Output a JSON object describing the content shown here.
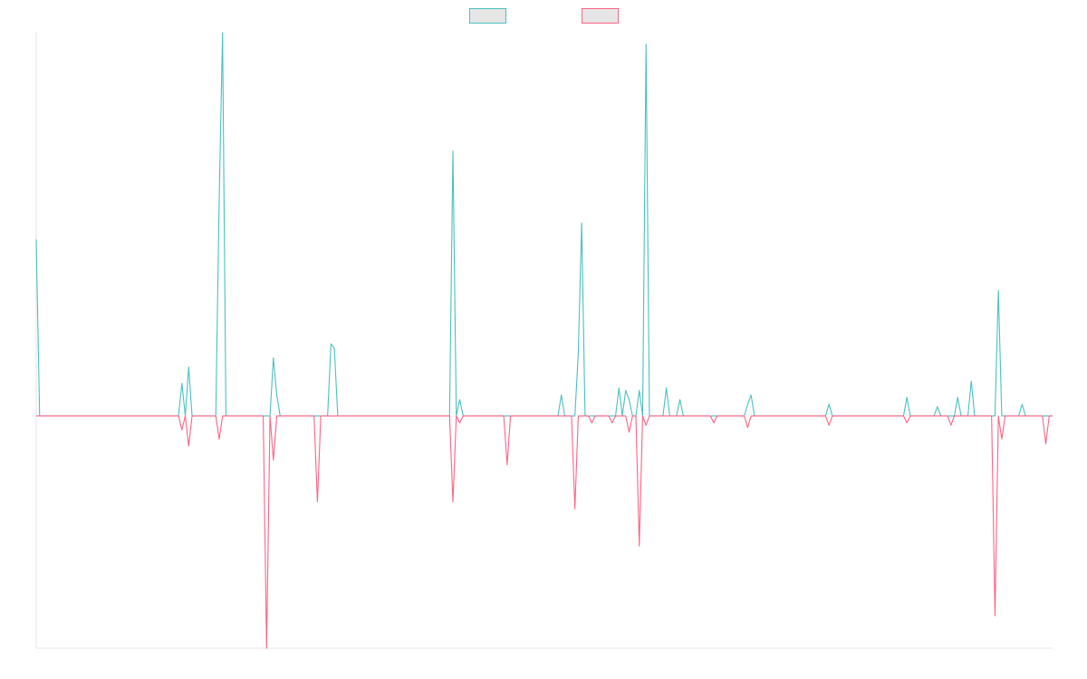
{
  "chart_data": {
    "type": "line",
    "title": "",
    "xlabel": "",
    "ylabel": "",
    "grid": false,
    "legend_position": "top-center",
    "x_range": [
      0,
      300
    ],
    "y_range": [
      -1.0,
      1.65
    ],
    "series": [
      {
        "color": "#4bc0c0",
        "fill": "#e6e6e6",
        "values": {
          "0": 0.76,
          "1": 0,
          "43": 0.14,
          "44": 0,
          "45": 0.21,
          "54": 0.93,
          "55": 1.65,
          "70": 0.25,
          "71": 0.09,
          "87": 0.31,
          "88": 0.29,
          "123": 1.14,
          "125": 0.07,
          "155": 0.09,
          "160": 0.27,
          "161": 0.83,
          "175": 0.07,
          "172": 0.12,
          "174": 0.11,
          "178": 0.11,
          "186": 0.12,
          "190": 0.07,
          "180": 1.6,
          "211": 0.09,
          "210": 0.05,
          "234": 0.05,
          "257": 0.08,
          "272": 0.08,
          "284": 0.54,
          "266": 0.04,
          "276": 0.15,
          "291": 0.05,
          "300": 0
        }
      },
      {
        "color": "#ff6384",
        "fill": "#e6e6e6",
        "values": {
          "43": -0.06,
          "45": -0.13,
          "54": -0.1,
          "68": -1.0,
          "70": -0.19,
          "83": -0.37,
          "123": -0.37,
          "125": -0.03,
          "139": -0.21,
          "159": -0.4,
          "164": -0.03,
          "170": -0.03,
          "175": -0.07,
          "178": -0.56,
          "180": -0.04,
          "200": -0.03,
          "210": -0.05,
          "234": -0.04,
          "257": -0.03,
          "270": -0.04,
          "283": -0.86,
          "298": -0.12,
          "285": -0.1,
          "300": 0
        }
      }
    ]
  }
}
